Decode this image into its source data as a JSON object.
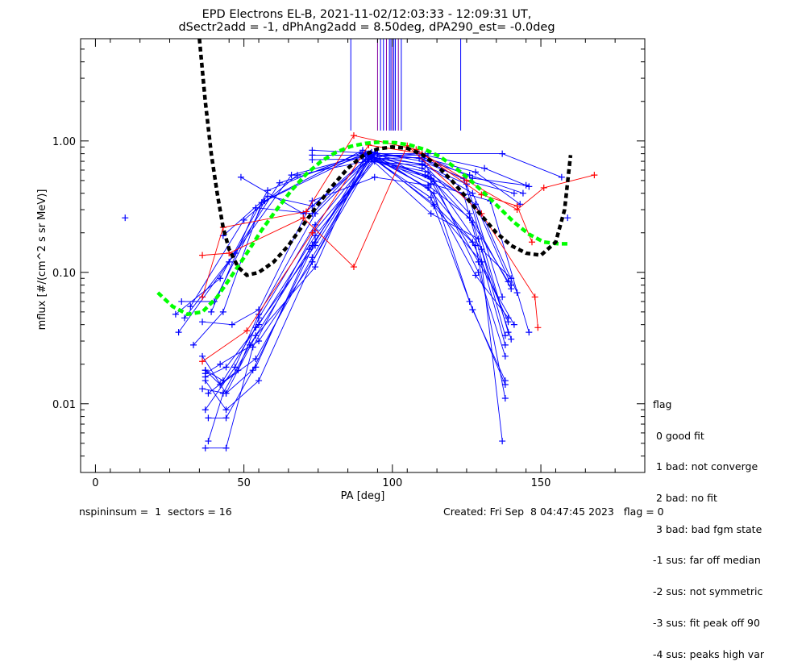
{
  "chart_data": {
    "type": "line",
    "title": "EPD Electrons EL-B, 2021-11-02/12:03:33 - 12:09:31 UT,",
    "subtitle": "dSectr2add = -1, dPhAng2add = 8.50deg, dPA290_est=  -0.0deg",
    "xlabel": "PA [deg]",
    "ylabel": "mflux [#/(cm^2 s sr MeV)]",
    "xlim": [
      -5,
      185
    ],
    "ylim": [
      0.003,
      6.0
    ],
    "yscale": "log",
    "xticks": [
      0,
      50,
      100,
      150
    ],
    "xtick_labels": [
      "0",
      "50",
      "100",
      "150"
    ],
    "yticks": [
      0.01,
      0.1,
      1.0
    ],
    "ytick_labels": [
      "0.01",
      "0.10",
      "1.00"
    ],
    "colors": {
      "blue": "#0000ff",
      "red": "#ff0000",
      "green": "#00ff00",
      "black": "#000000",
      "purple": "#8000a0"
    },
    "vertical_lines": {
      "x": [
        86,
        95,
        96,
        97,
        98,
        99,
        99.5,
        100,
        100.5,
        101,
        102,
        103,
        123
      ],
      "ymin": 1.2
    },
    "blue_traces": [
      [
        [
          73,
          0.85
        ],
        [
          95,
          0.8
        ],
        [
          112,
          0.8
        ],
        [
          137,
          0.8
        ],
        [
          157,
          0.53
        ]
      ],
      [
        [
          73,
          0.78
        ],
        [
          93,
          0.78
        ],
        [
          111,
          0.78
        ],
        [
          131,
          0.62
        ],
        [
          146,
          0.45
        ]
      ],
      [
        [
          73,
          0.72
        ],
        [
          92,
          0.73
        ],
        [
          110,
          0.75
        ],
        [
          128,
          0.58
        ],
        [
          143,
          0.33
        ]
      ],
      [
        [
          49,
          0.53
        ],
        [
          70,
          0.28
        ],
        [
          93,
          0.75
        ],
        [
          109,
          0.8
        ],
        [
          127,
          0.52
        ],
        [
          145,
          0.46
        ]
      ],
      [
        [
          43,
          0.19
        ],
        [
          58,
          0.38
        ],
        [
          73,
          0.32
        ],
        [
          93,
          0.79
        ],
        [
          109,
          0.74
        ],
        [
          126,
          0.55
        ],
        [
          144,
          0.4
        ]
      ],
      [
        [
          39,
          0.05
        ],
        [
          54,
          0.31
        ],
        [
          73,
          0.28
        ],
        [
          93,
          0.82
        ],
        [
          110,
          0.73
        ],
        [
          125,
          0.5
        ],
        [
          141,
          0.4
        ]
      ],
      [
        [
          32,
          0.055
        ],
        [
          50,
          0.25
        ],
        [
          68,
          0.55
        ],
        [
          91,
          0.7
        ],
        [
          111,
          0.65
        ],
        [
          126,
          0.28
        ],
        [
          140,
          0.075
        ]
      ],
      [
        [
          30,
          0.045
        ],
        [
          47,
          0.14
        ],
        [
          66,
          0.55
        ],
        [
          91,
          0.78
        ],
        [
          110,
          0.62
        ],
        [
          128,
          0.33
        ],
        [
          140,
          0.08
        ]
      ],
      [
        [
          28,
          0.035
        ],
        [
          45,
          0.12
        ],
        [
          62,
          0.48
        ],
        [
          90,
          0.76
        ],
        [
          110,
          0.67
        ],
        [
          127,
          0.4
        ],
        [
          142,
          0.07
        ]
      ],
      [
        [
          27,
          0.048
        ],
        [
          42,
          0.09
        ],
        [
          58,
          0.42
        ],
        [
          90,
          0.82
        ],
        [
          110,
          0.66
        ],
        [
          125,
          0.47
        ],
        [
          137,
          0.065
        ]
      ],
      [
        [
          29,
          0.06
        ],
        [
          40,
          0.06
        ],
        [
          57,
          0.35
        ],
        [
          90,
          0.85
        ],
        [
          110,
          0.7
        ],
        [
          124,
          0.52
        ],
        [
          139,
          0.035
        ]
      ],
      [
        [
          33,
          0.028
        ],
        [
          43,
          0.05
        ],
        [
          56,
          0.34
        ],
        [
          90,
          0.8
        ],
        [
          111,
          0.55
        ],
        [
          124,
          0.39
        ],
        [
          138,
          0.028
        ]
      ],
      [
        [
          36,
          0.042
        ],
        [
          46,
          0.04
        ],
        [
          55,
          0.052
        ],
        [
          73,
          0.35
        ],
        [
          94,
          0.53
        ],
        [
          112,
          0.46
        ],
        [
          126,
          0.26
        ],
        [
          139,
          0.085
        ]
      ],
      [
        [
          37,
          0.009
        ],
        [
          47,
          0.019
        ],
        [
          55,
          0.048
        ],
        [
          74,
          0.28
        ],
        [
          93,
          0.76
        ],
        [
          112,
          0.44
        ],
        [
          127,
          0.17
        ],
        [
          139,
          0.042
        ]
      ],
      [
        [
          38,
          0.012
        ],
        [
          48,
          0.018
        ],
        [
          55,
          0.045
        ],
        [
          74,
          0.23
        ],
        [
          92,
          0.72
        ],
        [
          113,
          0.52
        ],
        [
          127,
          0.24
        ],
        [
          140,
          0.031
        ]
      ],
      [
        [
          37,
          0.016
        ],
        [
          44,
          0.019
        ],
        [
          55,
          0.04
        ],
        [
          74,
          0.19
        ],
        [
          94,
          0.7
        ],
        [
          112,
          0.58
        ],
        [
          130,
          0.15
        ],
        [
          140,
          0.09
        ]
      ],
      [
        [
          37,
          0.018
        ],
        [
          43,
          0.015
        ],
        [
          54,
          0.038
        ],
        [
          74,
          0.16
        ],
        [
          94,
          0.82
        ],
        [
          114,
          0.49
        ],
        [
          129,
          0.1
        ],
        [
          138,
          0.023
        ]
      ],
      [
        [
          36,
          0.023
        ],
        [
          44,
          0.012
        ],
        [
          54,
          0.033
        ],
        [
          74,
          0.11
        ],
        [
          91,
          0.8
        ],
        [
          113,
          0.37
        ],
        [
          127,
          0.052
        ],
        [
          138,
          0.015
        ]
      ],
      [
        [
          37,
          0.017
        ],
        [
          42,
          0.02
        ],
        [
          55,
          0.03
        ],
        [
          73,
          0.12
        ],
        [
          93,
          0.82
        ],
        [
          114,
          0.4
        ],
        [
          126,
          0.06
        ],
        [
          138,
          0.014
        ]
      ],
      [
        [
          36,
          0.013
        ],
        [
          44,
          0.012
        ],
        [
          54,
          0.019
        ],
        [
          72,
          0.15
        ],
        [
          93,
          0.75
        ],
        [
          114,
          0.33
        ],
        [
          128,
          0.16
        ],
        [
          138,
          0.011
        ]
      ],
      [
        [
          37,
          0.015
        ],
        [
          44,
          0.009
        ],
        [
          55,
          0.015
        ],
        [
          73,
          0.12
        ],
        [
          93,
          0.72
        ],
        [
          113,
          0.28
        ],
        [
          129,
          0.18
        ],
        [
          138,
          0.033
        ]
      ],
      [
        [
          37,
          0.018
        ],
        [
          42,
          0.014
        ],
        [
          54,
          0.022
        ],
        [
          73,
          0.13
        ],
        [
          93,
          0.77
        ],
        [
          114,
          0.32
        ],
        [
          130,
          0.12
        ],
        [
          137,
          0.0052
        ]
      ],
      [
        [
          38,
          0.0078
        ],
        [
          44,
          0.0078
        ],
        [
          53,
          0.018
        ],
        [
          74,
          0.17
        ],
        [
          92,
          0.8
        ],
        [
          112,
          0.44
        ],
        [
          128,
          0.095
        ],
        [
          139,
          0.045
        ]
      ],
      [
        [
          37,
          0.0046
        ],
        [
          44,
          0.0046
        ],
        [
          53,
          0.027
        ],
        [
          74,
          0.21
        ],
        [
          94,
          0.72
        ],
        [
          112,
          0.54
        ],
        [
          129,
          0.12
        ],
        [
          141,
          0.04
        ]
      ],
      [
        [
          38,
          0.0052
        ],
        [
          43,
          0.012
        ],
        [
          52,
          0.028
        ],
        [
          73,
          0.16
        ],
        [
          93,
          0.78
        ],
        [
          113,
          0.47
        ],
        [
          133,
          0.35
        ],
        [
          146,
          0.035
        ]
      ]
    ],
    "blue_isolated": [
      [
        10,
        0.26
      ],
      [
        159,
        0.26
      ]
    ],
    "red_traces": [
      [
        [
          36,
          0.135
        ],
        [
          45,
          0.14
        ],
        [
          70,
          0.26
        ],
        [
          87,
          0.11
        ],
        [
          105,
          0.92
        ],
        [
          130,
          0.28
        ],
        [
          148,
          0.065
        ],
        [
          149,
          0.038
        ]
      ],
      [
        [
          36,
          0.065
        ],
        [
          43,
          0.22
        ],
        [
          71,
          0.29
        ],
        [
          87,
          1.1
        ],
        [
          108,
          0.86
        ],
        [
          125,
          0.5
        ],
        [
          142,
          0.3
        ],
        [
          151,
          0.44
        ],
        [
          168,
          0.55
        ]
      ],
      [
        [
          36,
          0.021
        ],
        [
          51,
          0.036
        ],
        [
          73,
          0.2
        ],
        [
          92,
          0.93
        ],
        [
          110,
          0.8
        ],
        [
          130,
          0.39
        ],
        [
          142,
          0.32
        ],
        [
          147,
          0.17
        ]
      ]
    ],
    "green_fit": [
      [
        21,
        0.07
      ],
      [
        26,
        0.055
      ],
      [
        31,
        0.048
      ],
      [
        36,
        0.05
      ],
      [
        41,
        0.065
      ],
      [
        46,
        0.095
      ],
      [
        51,
        0.14
      ],
      [
        56,
        0.21
      ],
      [
        61,
        0.3
      ],
      [
        66,
        0.42
      ],
      [
        71,
        0.56
      ],
      [
        76,
        0.7
      ],
      [
        81,
        0.82
      ],
      [
        86,
        0.91
      ],
      [
        91,
        0.96
      ],
      [
        96,
        0.98
      ],
      [
        101,
        0.97
      ],
      [
        106,
        0.93
      ],
      [
        111,
        0.86
      ],
      [
        116,
        0.76
      ],
      [
        121,
        0.63
      ],
      [
        126,
        0.51
      ],
      [
        131,
        0.4
      ],
      [
        136,
        0.31
      ],
      [
        141,
        0.24
      ],
      [
        146,
        0.195
      ],
      [
        151,
        0.17
      ],
      [
        156,
        0.165
      ],
      [
        160,
        0.165
      ]
    ],
    "black_fit": [
      [
        35,
        6.0
      ],
      [
        37,
        2.0
      ],
      [
        39,
        0.8
      ],
      [
        41,
        0.4
      ],
      [
        43,
        0.22
      ],
      [
        45,
        0.15
      ],
      [
        48,
        0.11
      ],
      [
        51,
        0.095
      ],
      [
        55,
        0.1
      ],
      [
        60,
        0.12
      ],
      [
        65,
        0.16
      ],
      [
        70,
        0.23
      ],
      [
        75,
        0.33
      ],
      [
        80,
        0.46
      ],
      [
        85,
        0.62
      ],
      [
        90,
        0.77
      ],
      [
        95,
        0.87
      ],
      [
        100,
        0.9
      ],
      [
        105,
        0.88
      ],
      [
        110,
        0.79
      ],
      [
        115,
        0.65
      ],
      [
        120,
        0.5
      ],
      [
        125,
        0.37
      ],
      [
        130,
        0.27
      ],
      [
        135,
        0.2
      ],
      [
        140,
        0.16
      ],
      [
        145,
        0.14
      ],
      [
        150,
        0.135
      ],
      [
        155,
        0.17
      ],
      [
        158,
        0.3
      ],
      [
        160,
        0.78
      ]
    ],
    "legend_title": "flag",
    "legend_entries": [
      " 0 good fit",
      " 1 bad: not converge",
      " 2 bad: no fit",
      " 3 bad: bad fgm state",
      "-1 sus: far off median",
      "-2 sus: not symmetric",
      "-3 sus: fit peak off 90",
      "-4 sus: peaks high var"
    ]
  },
  "footer": {
    "left": "nspininsum =  1  sectors = 16",
    "right": "Created: Fri Sep  8 04:47:45 2023   flag = 0"
  }
}
